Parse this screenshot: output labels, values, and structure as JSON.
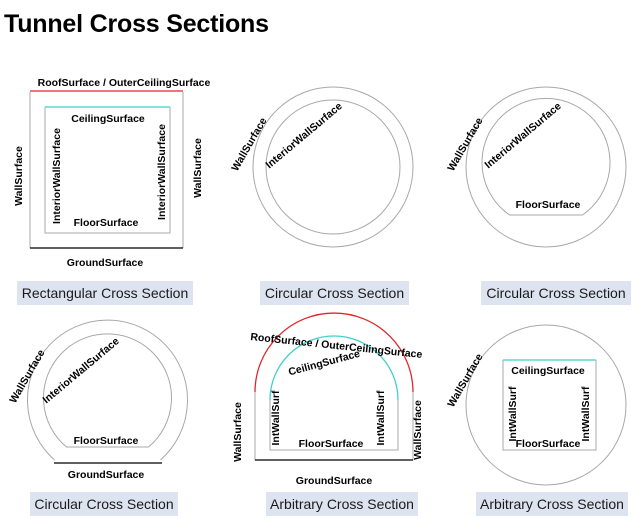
{
  "title": "Tunnel Cross Sections",
  "colors": {
    "outer": "#a8a8a8",
    "roof": "#e0262b",
    "ceiling": "#3fd0cf",
    "ground": "#000000",
    "caption_bg": "#dde3ef"
  },
  "panels": [
    {
      "caption": "Rectangular Cross Section",
      "labels": {
        "roof": "RoofSurface / OuterCeilingSurface",
        "ceiling": "CeilingSurface",
        "wall_left": "WallSurface",
        "wall_right": "WallSurface",
        "interior_left": "InteriorWallSurface",
        "interior_right": "InteriorWallSurface",
        "floor": "FloorSurface",
        "ground": "GroundSurface"
      }
    },
    {
      "caption": "Circular Cross Section",
      "labels": {
        "wall": "WallSurface",
        "interior": "InteriorWallSurface"
      }
    },
    {
      "caption": "Circular Cross Section",
      "labels": {
        "wall": "WallSurface",
        "interior": "InteriorWallSurface",
        "floor": "FloorSurface"
      }
    },
    {
      "caption": "Circular Cross Section",
      "labels": {
        "wall": "WallSurface",
        "interior": "InteriorWallSurface",
        "floor": "FloorSurface",
        "ground": "GroundSurface"
      }
    },
    {
      "caption": "Arbitrary Cross Section",
      "labels": {
        "roof": "RoofSurface / OuterCeilingSurface",
        "ceiling": "CeilingSurface",
        "wall_left": "WallSurface",
        "wall_right": "WallSurface",
        "int_left": "IntWallSurf",
        "int_right": "IntWallSurf",
        "floor": "FloorSurface",
        "ground": "GroundSurface"
      }
    },
    {
      "caption": "Arbitrary Cross Section",
      "labels": {
        "wall": "WallSurface",
        "ceiling": "CeilingSurface",
        "int_left": "IntWallSurf",
        "int_right": "IntWallSurf",
        "floor": "FloorSurface"
      }
    }
  ]
}
